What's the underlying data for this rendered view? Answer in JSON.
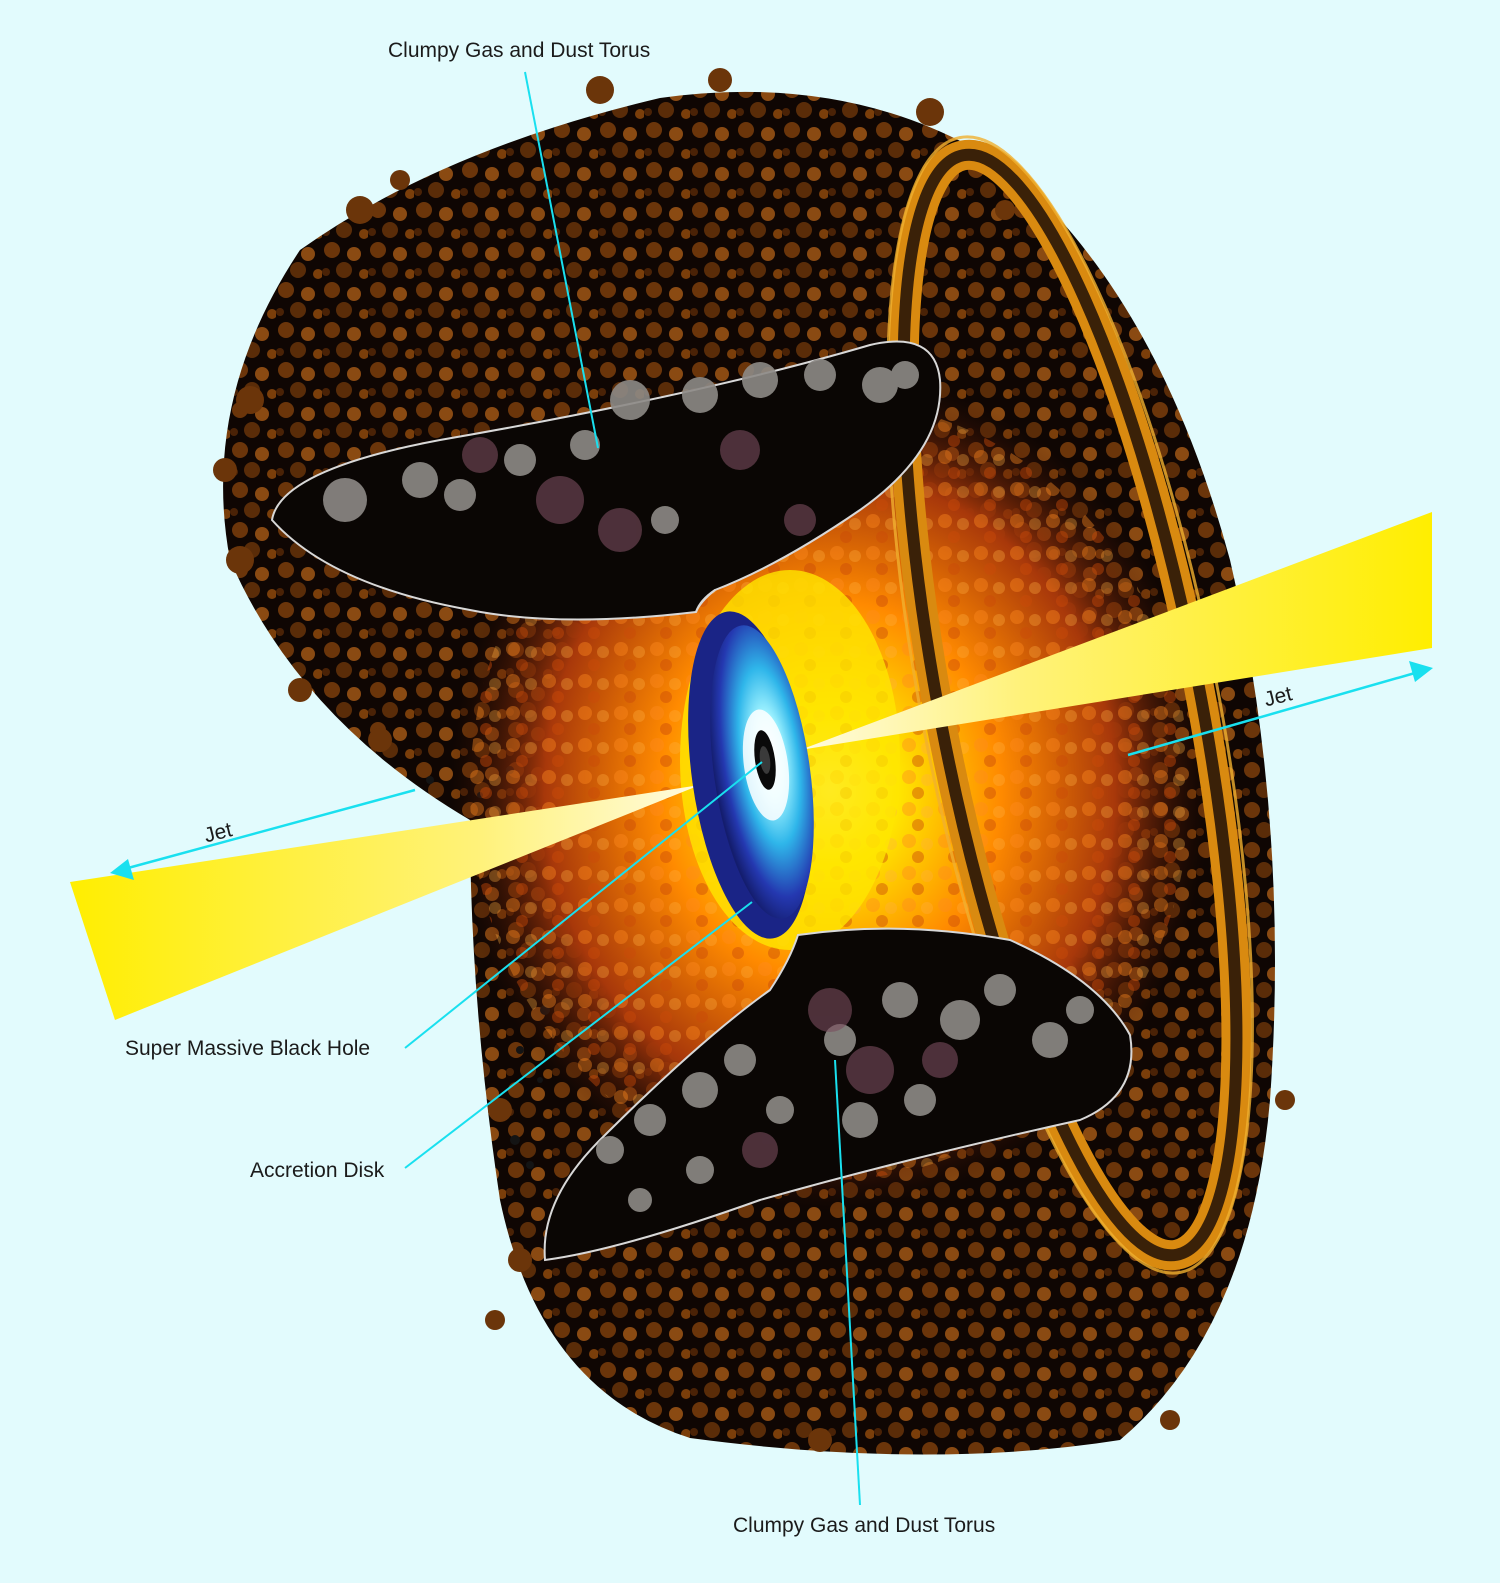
{
  "labels": {
    "torus_top": "Clumpy Gas and Dust Torus",
    "torus_bottom": "Clumpy Gas and Dust Torus",
    "black_hole": "Super Massive Black Hole",
    "accretion_disk": "Accretion Disk",
    "jet_right": "Jet",
    "jet_left": "Jet"
  },
  "colors": {
    "background": "#e2fbfd",
    "leader_line": "#19e0ef",
    "jet": "#ffee00",
    "torus_dark": "#0d0502",
    "torus_clump": "#7a3e0a",
    "glow_orange": "#ff6a00",
    "glow_yellow": "#ffe600",
    "disk_blue": "#1e2a9e",
    "disk_cyan": "#37c8f0",
    "ring_orange": "#d98a10",
    "cloud_gray": "#8d8a86"
  }
}
